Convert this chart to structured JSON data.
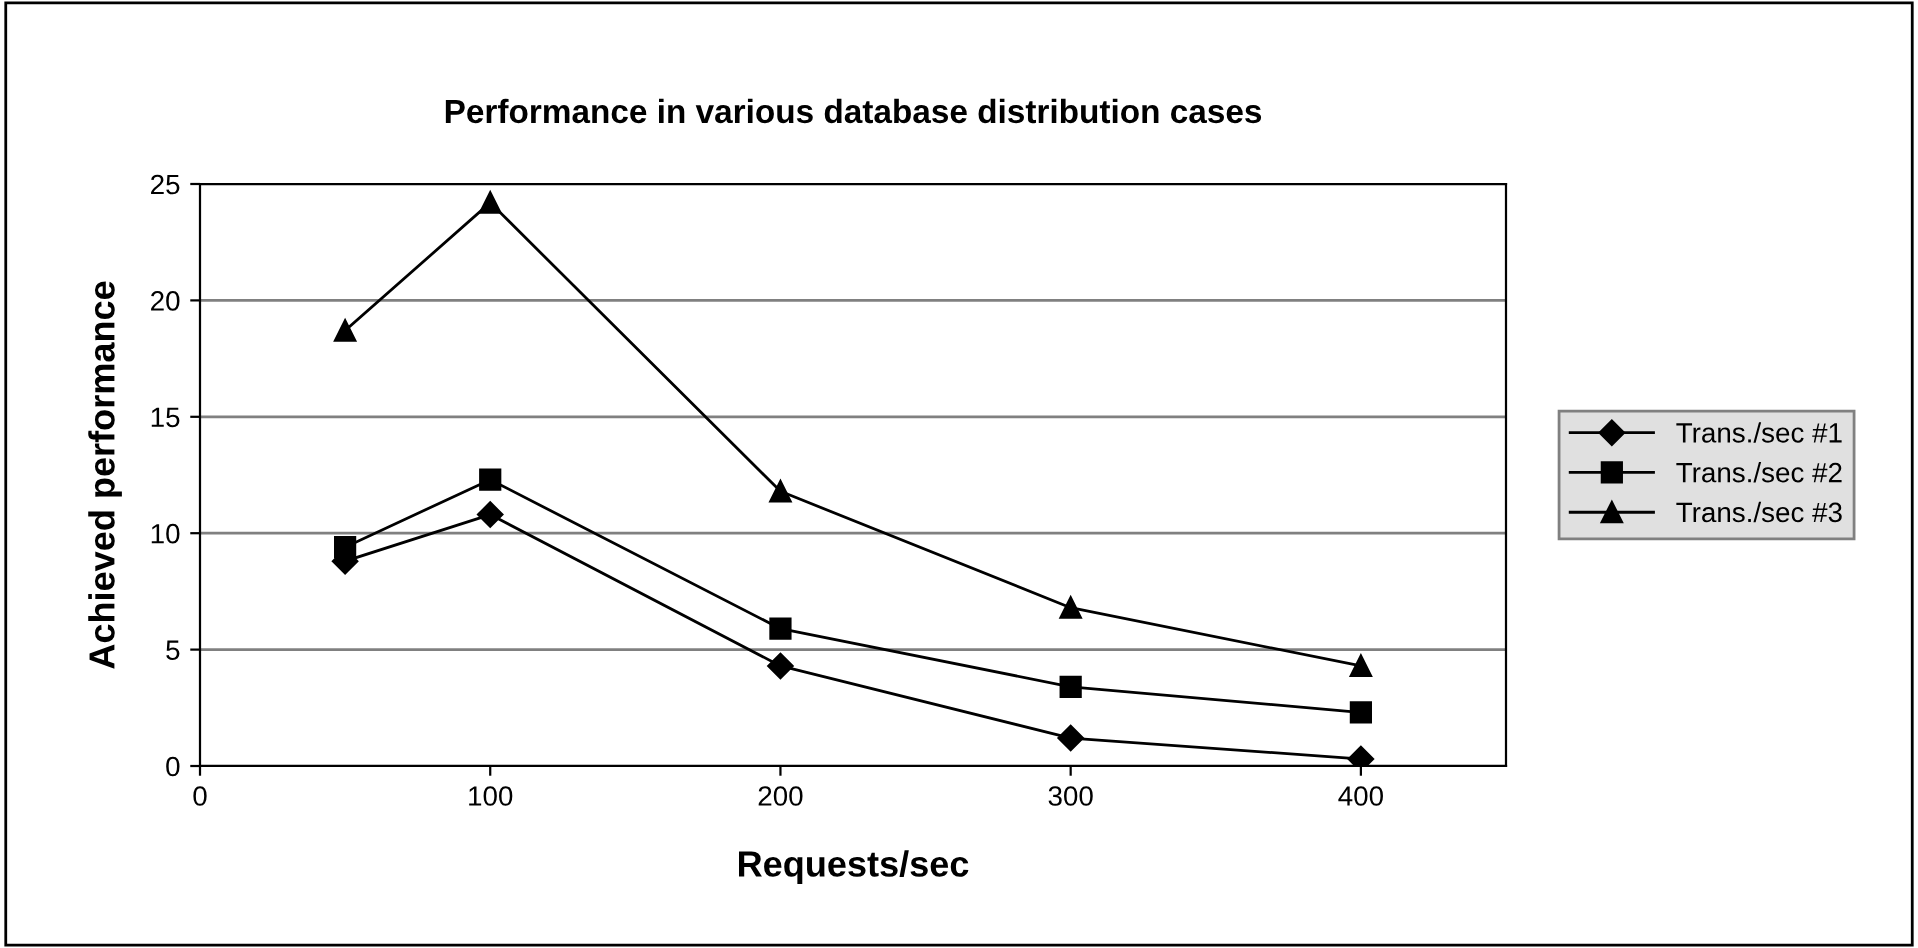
{
  "chart_data": {
    "type": "line",
    "title": "Performance in various database distribution cases",
    "xlabel": "Requests/sec",
    "ylabel": "Achieved performance",
    "x": [
      50,
      100,
      200,
      300,
      400
    ],
    "series": [
      {
        "name": "Trans./sec #1",
        "color": "#000000",
        "marker": "diamond",
        "values": [
          8.8,
          10.8,
          4.3,
          1.2,
          0.3
        ]
      },
      {
        "name": "Trans./sec #2",
        "color": "#000000",
        "marker": "square",
        "values": [
          9.4,
          12.3,
          5.9,
          3.4,
          2.3
        ]
      },
      {
        "name": "Trans./sec #3",
        "color": "#000000",
        "marker": "triangle",
        "values": [
          18.7,
          24.2,
          11.8,
          6.8,
          4.3
        ]
      }
    ],
    "xlim": [
      0,
      450
    ],
    "xticks": [
      0,
      100,
      200,
      300,
      400
    ],
    "ylim": [
      0,
      25
    ],
    "yticks": [
      0,
      5,
      10,
      15,
      20,
      25
    ],
    "grid": "y",
    "legend": "right",
    "line_style": "solid"
  }
}
